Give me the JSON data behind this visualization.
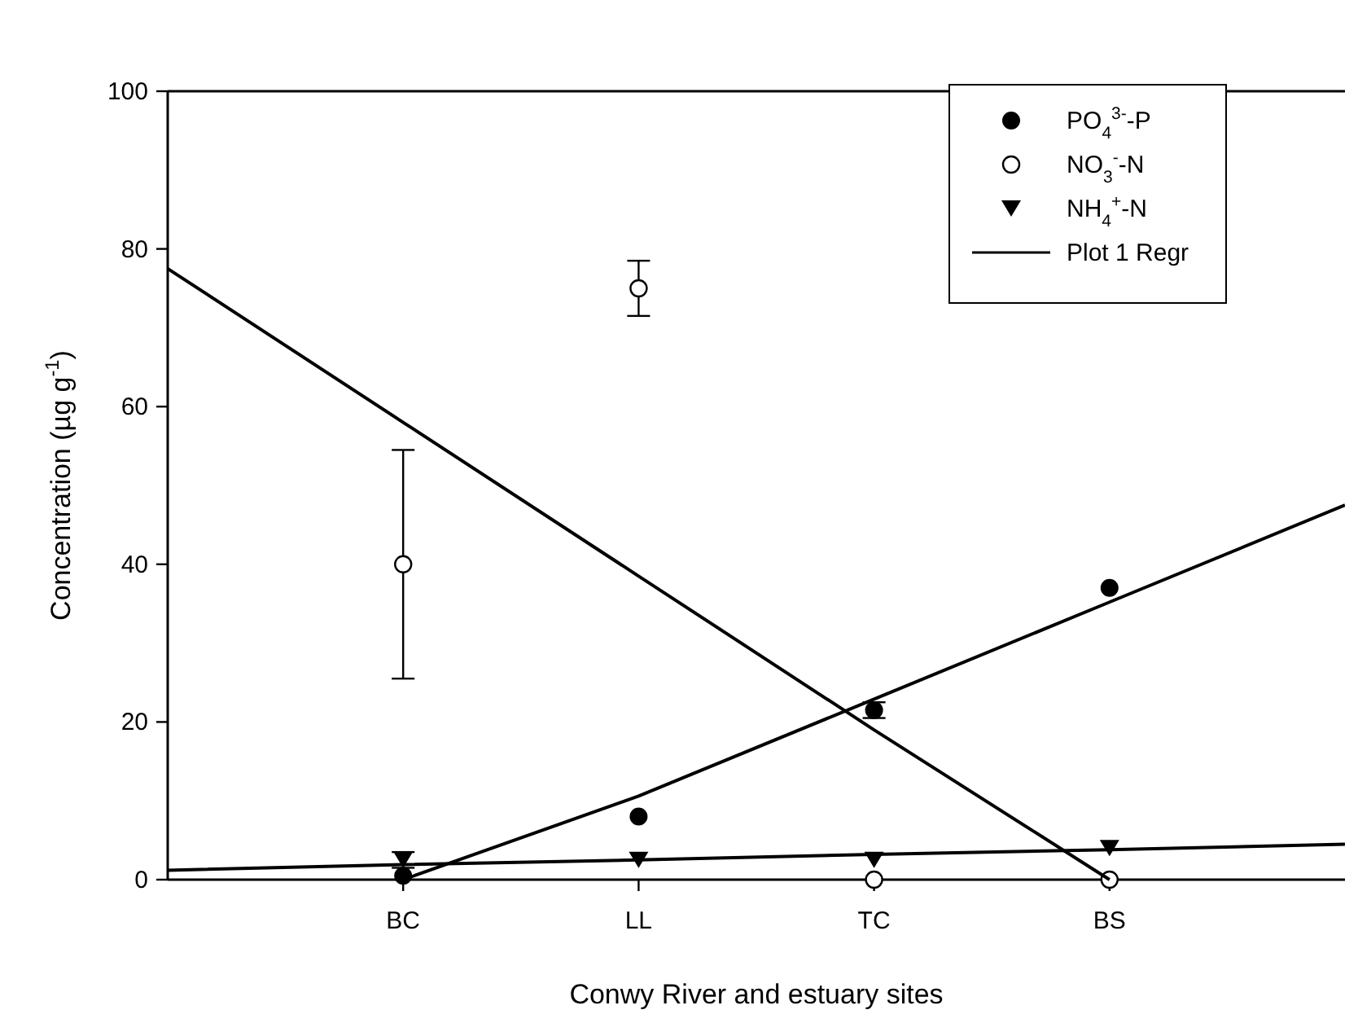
{
  "chart_data": {
    "type": "scatter",
    "xlabel": "Conwy River and estuary sites",
    "ylabel": "Concentration (µg g$^{-1}$)",
    "categories": [
      null,
      "BC",
      "LL",
      "TC",
      "BS",
      null
    ],
    "ylim": [
      0,
      100
    ],
    "yticks": [
      0,
      20,
      40,
      60,
      80,
      100
    ],
    "grid": false,
    "legend": "top right",
    "series": [
      {
        "name": "PO$_{4}$$^{3-}$-P",
        "color": "#000000",
        "marker": "circle",
        "values": [
          null,
          0.5,
          8,
          21.5,
          37,
          null
        ],
        "errors": [
          null,
          null,
          null,
          1,
          null,
          null
        ]
      },
      {
        "name": "NO$_{3}$$^{-}$-N",
        "color": "#000000",
        "marker": "circle-open",
        "values": [
          null,
          40,
          75,
          0,
          0,
          null
        ],
        "errors": [
          null,
          14.5,
          3.5,
          null,
          null,
          null
        ]
      },
      {
        "name": "NH$_{4}$$^{+}$-N",
        "color": "#000000",
        "marker": "triangle",
        "values": [
          null,
          2.5,
          2.5,
          2.5,
          4,
          null
        ],
        "errors": [
          null,
          1,
          null,
          null,
          null,
          null
        ]
      },
      {
        "name": "Plot 1 Regr",
        "type": "line",
        "color": "#000000",
        "marker": "none",
        "values": [
          77.5,
          58,
          38.5,
          19,
          0,
          null
        ]
      },
      {
        "type": "line",
        "color": "#000000",
        "marker": "none",
        "values": [
          null,
          0,
          10.6,
          22.9,
          35.2,
          47.5
        ]
      },
      {
        "type": "line",
        "color": "#000000",
        "marker": "none",
        "values": [
          1.2,
          1.9,
          2.5,
          3.2,
          3.8,
          4.5
        ]
      }
    ]
  }
}
